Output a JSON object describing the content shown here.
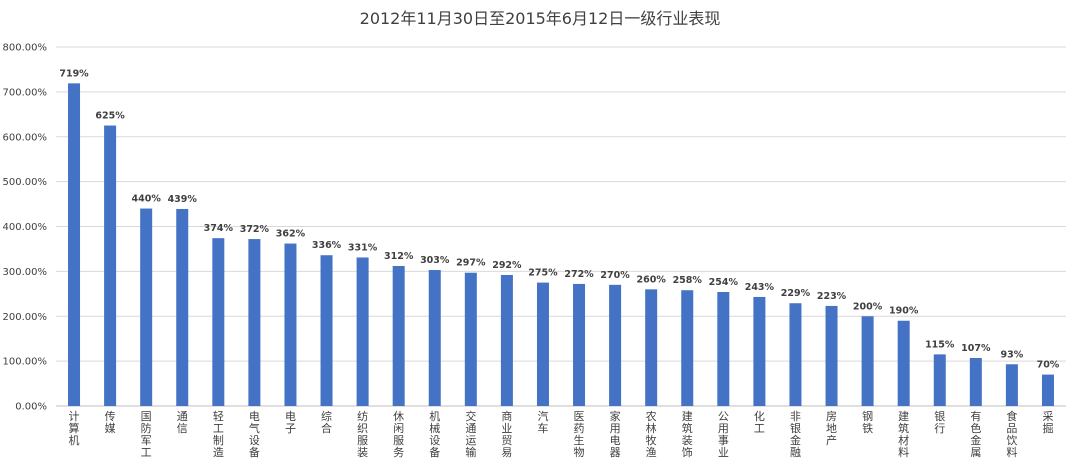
{
  "chart_data": {
    "type": "bar",
    "title": "2012年11月30日至2015年6月12日一级行业表现",
    "xlabel": "",
    "ylabel": "",
    "ylim": [
      0,
      800
    ],
    "yticks": [
      "0.00%",
      "100.00%",
      "200.00%",
      "300.00%",
      "400.00%",
      "500.00%",
      "600.00%",
      "700.00%",
      "800.00%"
    ],
    "grid": true,
    "legend": "none",
    "bar_color": "#4472C4",
    "categories": [
      "计算机",
      "传媒",
      "国防军工",
      "通信",
      "轻工制造",
      "电气设备",
      "电子",
      "综合",
      "纺织服装",
      "休闲服务",
      "机械设备",
      "交通运输",
      "商业贸易",
      "汽车",
      "医药生物",
      "家用电器",
      "农林牧渔",
      "建筑装饰",
      "公用事业",
      "化工",
      "非银金融",
      "房地产",
      "钢铁",
      "建筑材料",
      "银行",
      "有色金属",
      "食品饮料",
      "采掘"
    ],
    "values": [
      719,
      625,
      440,
      439,
      374,
      372,
      362,
      336,
      331,
      312,
      303,
      297,
      292,
      275,
      272,
      270,
      260,
      258,
      254,
      243,
      229,
      223,
      200,
      190,
      115,
      107,
      93,
      70
    ],
    "data_labels": [
      "719%",
      "625%",
      "440%",
      "439%",
      "374%",
      "372%",
      "362%",
      "336%",
      "331%",
      "312%",
      "303%",
      "297%",
      "292%",
      "275%",
      "272%",
      "270%",
      "260%",
      "258%",
      "254%",
      "243%",
      "229%",
      "223%",
      "200%",
      "190%",
      "115%",
      "107%",
      "93%",
      "70%"
    ]
  }
}
